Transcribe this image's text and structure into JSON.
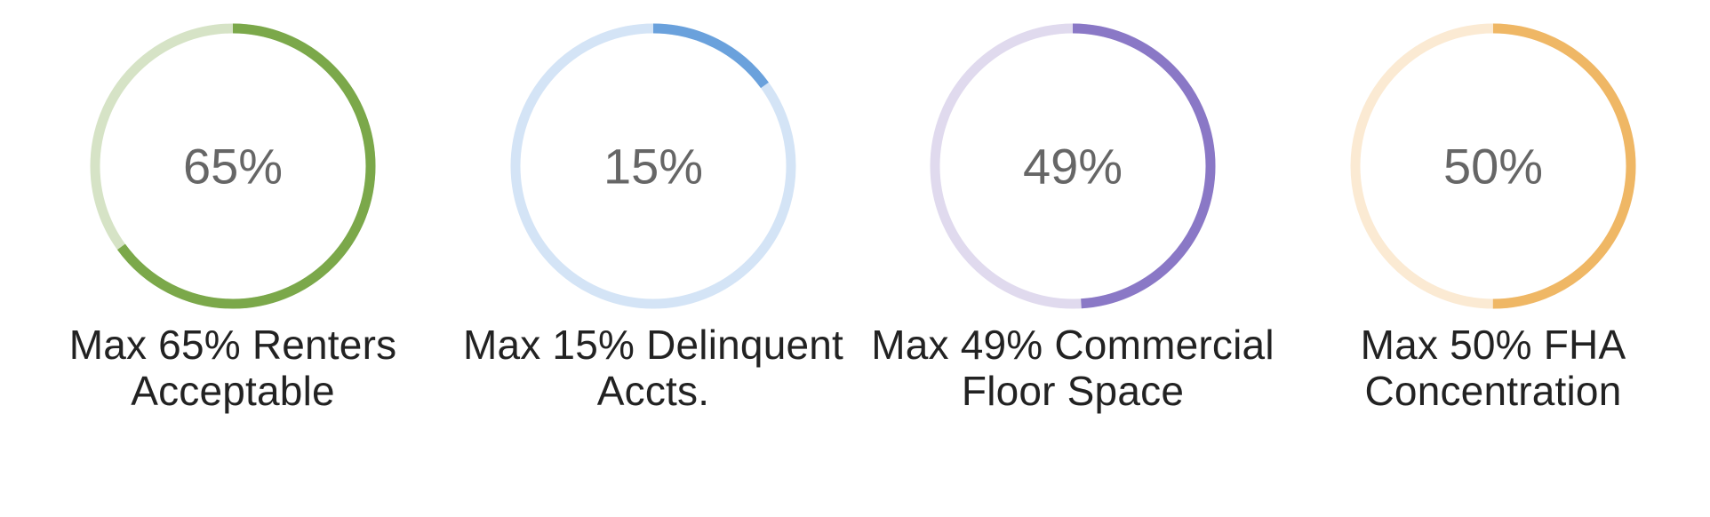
{
  "chart_data": [
    {
      "type": "gauge",
      "value": 65,
      "value_label": "65%",
      "caption": "Max 65% Renters Acceptable",
      "color": "#7ba84a",
      "track_color": "#d6e3c6"
    },
    {
      "type": "gauge",
      "value": 15,
      "value_label": "15%",
      "caption": "Max 15% Delinquent Accts.",
      "color": "#6aa1dc",
      "track_color": "#d4e4f6"
    },
    {
      "type": "gauge",
      "value": 49,
      "value_label": "49%",
      "caption": "Max 49% Commercial Floor Space",
      "color": "#8a78c6",
      "track_color": "#e0daee"
    },
    {
      "type": "gauge",
      "value": 50,
      "value_label": "50%",
      "caption": "Max 50% FHA Concentration",
      "color": "#efb765",
      "track_color": "#fbead3"
    }
  ]
}
